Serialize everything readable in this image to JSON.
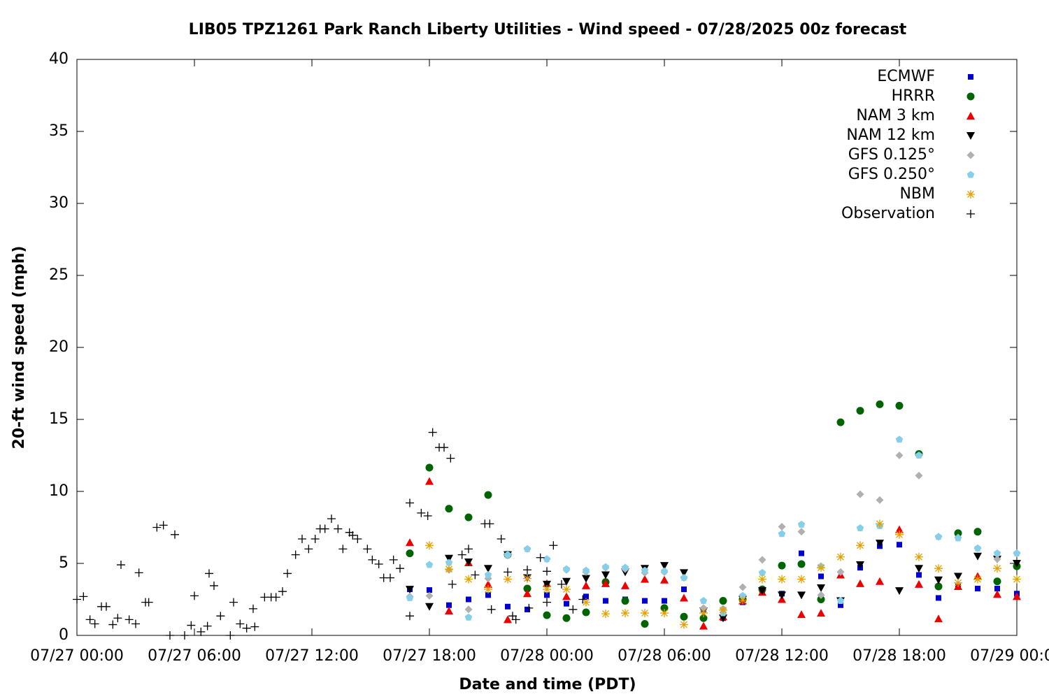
{
  "chart_data": {
    "type": "scatter",
    "title": "LIB05 TPZ1261 Park Ranch Liberty Utilities - Wind speed - 07/28/2025 00z forecast",
    "x_label": "Date and time (PDT)",
    "y_label": "20-ft wind speed (mph)",
    "legend": "top-right",
    "grid": false,
    "xlim": [
      "07/27 00:00",
      "07/29 00:00"
    ],
    "xticks": [
      "07/27 00:00",
      "07/27 06:00",
      "07/27 12:00",
      "07/27 18:00",
      "07/28 00:00",
      "07/28 06:00",
      "07/28 12:00",
      "07/28 18:00",
      "07/29 00:00"
    ],
    "ylim": [
      0,
      40
    ],
    "yticks": [
      0,
      5,
      10,
      15,
      20,
      25,
      30,
      35,
      40
    ],
    "x": [
      "07/27 17:00",
      "07/27 18:00",
      "07/27 19:00",
      "07/27 20:00",
      "07/27 21:00",
      "07/27 22:00",
      "07/27 23:00",
      "07/28 00:00",
      "07/28 01:00",
      "07/28 02:00",
      "07/28 03:00",
      "07/28 04:00",
      "07/28 05:00",
      "07/28 06:00",
      "07/28 07:00",
      "07/28 08:00",
      "07/28 09:00",
      "07/28 10:00",
      "07/28 11:00",
      "07/28 12:00",
      "07/28 13:00",
      "07/28 14:00",
      "07/28 15:00",
      "07/28 16:00",
      "07/28 17:00",
      "07/28 18:00",
      "07/28 19:00",
      "07/28 20:00",
      "07/28 21:00",
      "07/28 22:00",
      "07/28 23:00",
      "07/29 00:00"
    ],
    "series": [
      {
        "name": "ECMWF",
        "color": "#0000cc",
        "marker": "square",
        "values": [
          3.2,
          3.15,
          2.1,
          2.5,
          2.8,
          2.0,
          1.8,
          2.8,
          2.2,
          2.7,
          2.4,
          2.5,
          2.4,
          2.4,
          3.2,
          1.8,
          1.2,
          2.3,
          3.1,
          2.9,
          5.7,
          4.1,
          2.1,
          4.7,
          6.2,
          6.3,
          4.2,
          2.6,
          3.4,
          3.25,
          3.25,
          2.9
        ]
      },
      {
        "name": "HRRR",
        "color": "#006400",
        "marker": "circle",
        "values": [
          5.7,
          11.65,
          8.8,
          8.2,
          9.75,
          5.6,
          3.25,
          1.4,
          1.2,
          1.6,
          3.7,
          2.4,
          0.8,
          1.9,
          1.3,
          1.2,
          2.4,
          2.5,
          3.2,
          4.85,
          4.95,
          2.5,
          14.8,
          15.6,
          16.05,
          15.95,
          12.6,
          3.4,
          7.1,
          7.2,
          3.75,
          4.8
        ]
      },
      {
        "name": "NAM 3 km",
        "color": "#ee0000",
        "marker": "triangle-up",
        "values": [
          6.45,
          10.7,
          1.7,
          5.05,
          3.55,
          1.1,
          2.9,
          3.6,
          2.7,
          3.45,
          3.6,
          3.45,
          3.9,
          3.85,
          2.6,
          0.65,
          1.3,
          2.4,
          3.0,
          2.5,
          1.45,
          1.55,
          4.2,
          3.6,
          3.75,
          7.35,
          3.55,
          1.15,
          3.4,
          4.1,
          2.85,
          2.7
        ]
      },
      {
        "name": "NAM 12 km",
        "color": "#000000",
        "marker": "triangle-down",
        "values": [
          3.2,
          2.0,
          5.35,
          5.1,
          4.65,
          5.6,
          4.0,
          3.55,
          3.75,
          3.95,
          4.2,
          4.4,
          4.65,
          4.85,
          4.35,
          1.7,
          1.2,
          2.5,
          3.1,
          2.8,
          2.8,
          3.3,
          2.4,
          4.9,
          6.4,
          3.1,
          4.65,
          3.85,
          4.1,
          5.5,
          5.3,
          5.0
        ]
      },
      {
        "name": "GFS 0.125°",
        "color": "#b0b0b0",
        "marker": "diamond",
        "values": [
          2.7,
          2.75,
          4.55,
          1.8,
          3.95,
          5.55,
          6.0,
          5.3,
          4.55,
          4.4,
          4.7,
          4.6,
          4.35,
          4.4,
          4.0,
          1.9,
          1.85,
          3.35,
          5.25,
          7.55,
          7.2,
          2.8,
          4.4,
          9.8,
          9.4,
          12.5,
          11.1,
          6.85,
          6.8,
          6.05,
          5.3,
          5.7
        ]
      },
      {
        "name": "GFS 0.250°",
        "color": "#87ceeb",
        "marker": "pentagon",
        "values": [
          2.6,
          4.9,
          5.05,
          1.25,
          4.2,
          5.6,
          6.0,
          5.3,
          4.6,
          4.5,
          4.75,
          4.7,
          4.5,
          4.45,
          4.0,
          2.4,
          1.55,
          2.75,
          4.35,
          7.05,
          7.7,
          4.8,
          2.4,
          7.45,
          7.6,
          13.6,
          12.5,
          6.85,
          6.75,
          6.05,
          5.7,
          5.7
        ]
      },
      {
        "name": "NBM",
        "color": "#e69f00",
        "marker": "asterisk",
        "values": [
          null,
          6.25,
          4.6,
          3.9,
          3.2,
          3.9,
          3.95,
          3.2,
          3.2,
          2.3,
          1.5,
          1.55,
          1.55,
          1.55,
          0.75,
          1.55,
          1.75,
          2.45,
          3.9,
          3.9,
          3.9,
          4.7,
          5.45,
          6.25,
          7.75,
          7.0,
          5.45,
          4.65,
          3.65,
          3.9,
          4.65,
          3.9
        ]
      },
      {
        "name": "Observation",
        "color": "#000000",
        "marker": "plus",
        "x": [
          "07/27 00:00",
          "07/27 00:20",
          "07/27 00:40",
          "07/27 00:55",
          "07/27 01:15",
          "07/27 01:30",
          "07/27 01:50",
          "07/27 02:05",
          "07/27 02:15",
          "07/27 02:40",
          "07/27 03:00",
          "07/27 03:10",
          "07/27 03:30",
          "07/27 03:40",
          "07/27 04:05",
          "07/27 04:25",
          "07/27 04:45",
          "07/27 05:00",
          "07/27 05:30",
          "07/27 05:50",
          "07/27 06:00",
          "07/27 06:20",
          "07/27 06:40",
          "07/27 06:45",
          "07/27 07:00",
          "07/27 07:20",
          "07/27 07:50",
          "07/27 08:00",
          "07/27 08:20",
          "07/27 08:40",
          "07/27 09:00",
          "07/27 09:05",
          "07/27 09:35",
          "07/27 09:55",
          "07/27 10:10",
          "07/27 10:30",
          "07/27 10:45",
          "07/27 11:10",
          "07/27 11:30",
          "07/27 11:50",
          "07/27 12:10",
          "07/27 12:25",
          "07/27 12:40",
          "07/27 13:00",
          "07/27 13:20",
          "07/27 13:35",
          "07/27 13:55",
          "07/27 14:05",
          "07/27 14:20",
          "07/27 14:50",
          "07/27 15:05",
          "07/27 15:25",
          "07/27 15:40",
          "07/27 16:00",
          "07/27 16:10",
          "07/27 16:30",
          "07/27 17:00",
          "07/27 17:00",
          "07/27 17:35",
          "07/27 17:55",
          "07/27 18:10",
          "07/27 18:30",
          "07/27 18:45",
          "07/27 19:05",
          "07/27 19:10",
          "07/27 19:40",
          "07/27 20:00",
          "07/27 20:20",
          "07/27 20:50",
          "07/27 21:05",
          "07/27 21:10",
          "07/27 21:40",
          "07/27 22:00",
          "07/27 22:15",
          "07/27 22:25",
          "07/27 23:00",
          "07/27 23:05",
          "07/27 23:40",
          "07/28 00:00",
          "07/28 00:00",
          "07/28 00:20",
          "07/28 00:45",
          "07/28 01:20",
          "07/28 01:50"
        ],
        "values": [
          2.5,
          2.7,
          1.1,
          0.8,
          2.0,
          2.0,
          0.75,
          1.2,
          4.9,
          1.1,
          0.8,
          4.35,
          2.3,
          2.3,
          7.5,
          7.65,
          0,
          7.0,
          0,
          0.7,
          2.75,
          0.25,
          0.65,
          4.3,
          3.45,
          1.35,
          0,
          2.3,
          0.8,
          0.5,
          1.85,
          0.6,
          2.65,
          2.65,
          2.65,
          3.05,
          4.3,
          5.6,
          6.7,
          6.0,
          6.7,
          7.4,
          7.4,
          8.1,
          7.4,
          6.0,
          7.15,
          6.95,
          6.7,
          6.0,
          5.25,
          4.95,
          4.0,
          4.0,
          5.25,
          4.65,
          9.2,
          1.35,
          8.5,
          8.3,
          14.1,
          13.05,
          13.05,
          12.3,
          3.55,
          5.6,
          6.0,
          4.2,
          7.75,
          7.75,
          1.8,
          6.7,
          4.4,
          1.35,
          1.1,
          4.55,
          1.9,
          5.4,
          4.45,
          2.3,
          6.25,
          3.55,
          1.8,
          2.5
        ]
      }
    ]
  }
}
